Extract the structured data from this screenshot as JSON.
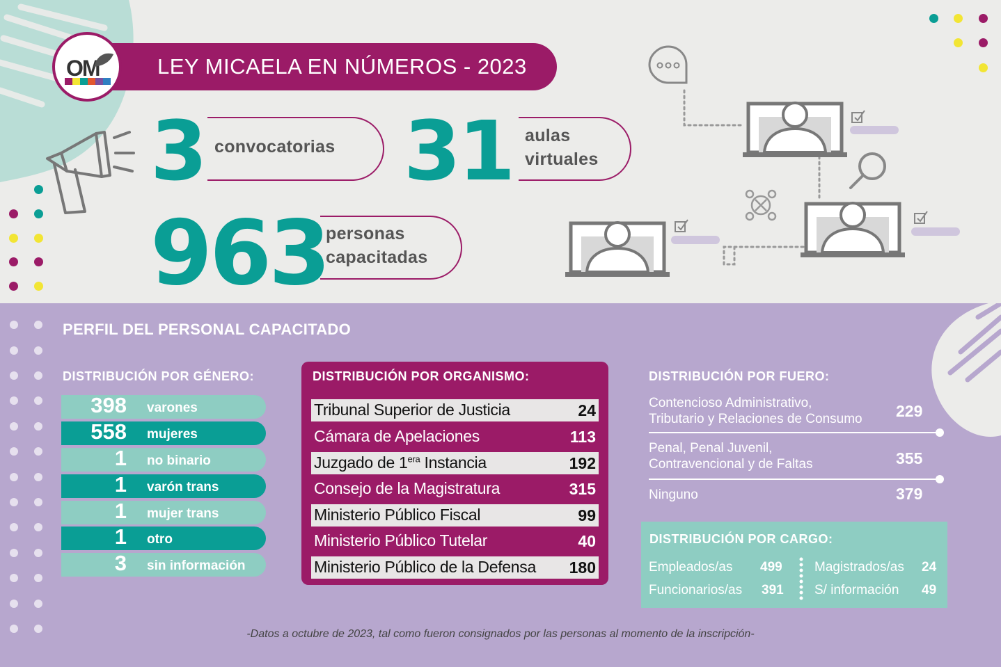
{
  "header": {
    "logo_text": "OM",
    "title": "LEY MICAELA EN NÚMEROS - 2023"
  },
  "stats": [
    {
      "value": "3",
      "label": "convocatorias"
    },
    {
      "value": "31",
      "label_line1": "aulas",
      "label_line2": "virtuales"
    },
    {
      "value": "963",
      "label_line1": "personas",
      "label_line2": "capacitadas"
    }
  ],
  "perfil": {
    "title": "PERFIL DEL PERSONAL CAPACITADO"
  },
  "genero": {
    "title": "DISTRIBUCIÓN POR GÉNERO:",
    "rows": [
      {
        "value": "398",
        "label": "varones"
      },
      {
        "value": "558",
        "label": "mujeres"
      },
      {
        "value": "1",
        "label": "no binario"
      },
      {
        "value": "1",
        "label": "varón trans"
      },
      {
        "value": "1",
        "label": "mujer trans"
      },
      {
        "value": "1",
        "label": "otro"
      },
      {
        "value": "3",
        "label": "sin información"
      }
    ]
  },
  "organismo": {
    "title": "DISTRIBUCIÓN POR ORGANISMO:",
    "rows": [
      {
        "name": "Tribunal Superior de Justicia",
        "value": "24"
      },
      {
        "name": "Cámara de Apelaciones",
        "value": "113"
      },
      {
        "name_pre": "Juzgado de 1",
        "name_sup": "era",
        "name_post": " Instancia",
        "value": "192"
      },
      {
        "name": "Consejo de la Magistratura",
        "value": "315"
      },
      {
        "name": "Ministerio Público Fiscal",
        "value": "99"
      },
      {
        "name": "Ministerio Público Tutelar",
        "value": "40"
      },
      {
        "name": "Ministerio Público de la Defensa",
        "value": "180"
      }
    ]
  },
  "fuero": {
    "title": "DISTRIBUCIÓN POR FUERO:",
    "rows": [
      {
        "line1": "Contencioso Administrativo,",
        "line2": "Tributario y Relaciones de Consumo",
        "value": "229"
      },
      {
        "line1": "Penal, Penal Juvenil,",
        "line2": "Contravencional y de Faltas",
        "value": "355"
      },
      {
        "line1": "Ninguno",
        "value": "379"
      }
    ]
  },
  "cargo": {
    "title": "DISTRIBUCIÓN POR CARGO:",
    "items": [
      {
        "label": "Empleados/as",
        "value": "499"
      },
      {
        "label": "Funcionarios/as",
        "value": "391"
      },
      {
        "label": "Magistrados/as",
        "value": "24"
      },
      {
        "label": "S/ información",
        "value": "49"
      }
    ]
  },
  "footnote": "-Datos a octubre de 2023, tal como fueron consignados por las personas al momento de la inscripción-",
  "colors": {
    "magenta": "#9b1b67",
    "teal": "#0a9e95",
    "light_teal": "#8ecdc2",
    "lavender": "#b7a7ce",
    "background": "#ececea",
    "yellow": "#f2e534"
  },
  "icons": [
    "megaphone-icon",
    "chat-bubble-icon",
    "laptop-user-icon",
    "magnifier-icon",
    "checkbox-icon",
    "network-icon"
  ]
}
